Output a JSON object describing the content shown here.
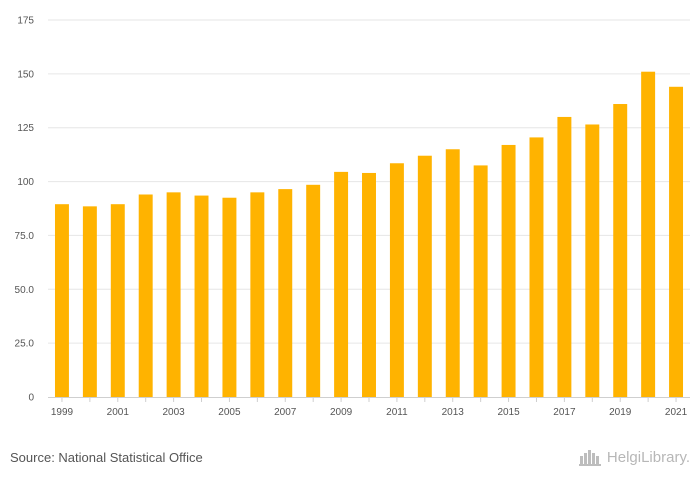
{
  "chart_data": {
    "type": "bar",
    "title": "",
    "xlabel": "",
    "ylabel": "",
    "categories": [
      "1999",
      "2000",
      "2001",
      "2002",
      "2003",
      "2004",
      "2005",
      "2006",
      "2007",
      "2008",
      "2009",
      "2010",
      "2011",
      "2012",
      "2013",
      "2014",
      "2015",
      "2016",
      "2017",
      "2018",
      "2019",
      "2020",
      "2021"
    ],
    "x_tick_labels": [
      "1999",
      "2001",
      "2003",
      "2005",
      "2007",
      "2009",
      "2011",
      "2013",
      "2015",
      "2017",
      "2019",
      "2021"
    ],
    "values": [
      89.5,
      88.5,
      89.5,
      94,
      95,
      93.5,
      92.5,
      95,
      96.5,
      98.5,
      104.5,
      104,
      108.5,
      112,
      115,
      107.5,
      117,
      120.5,
      130,
      126.5,
      136,
      151,
      144
    ],
    "ylim": [
      0,
      175
    ],
    "y_ticks": [
      0,
      25,
      50,
      75,
      100,
      125,
      150,
      175
    ],
    "y_tick_labels": [
      "0",
      "25.0",
      "50.0",
      "75.0",
      "100",
      "125",
      "150",
      "175"
    ],
    "grid": true,
    "bar_color": "#FFB300"
  },
  "footer": {
    "source": "Source: National Statistical Office"
  },
  "logo": {
    "text": "HelgiLibrary.",
    "icon": "building-icon"
  }
}
